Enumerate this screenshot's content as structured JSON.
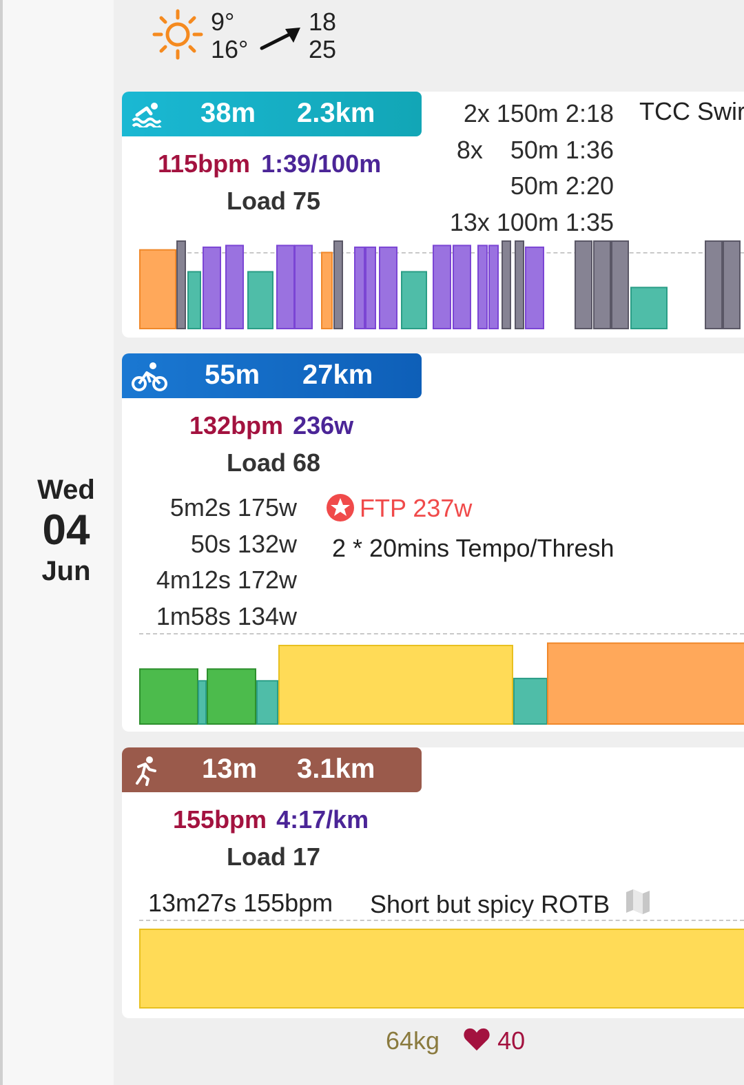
{
  "colors": {
    "swim": "#1eb0c6",
    "ride": "#1565c0",
    "run": "#9a5a4b",
    "hr": "#a3123f",
    "pace": "#4b2597",
    "ftp": "#f04a4a"
  },
  "day": {
    "dow": "Wed",
    "day": "04",
    "month": "Jun"
  },
  "weather": {
    "icon": "sun-icon",
    "temp_low": "9°",
    "temp_high": "16°",
    "wind_icon": "wind-arrow-icon",
    "wind_speed": "18",
    "wind_gust": "25"
  },
  "swim": {
    "icon": "swim-icon",
    "duration": "38m",
    "distance": "2.3km",
    "hr": "115bpm",
    "pace": "1:39/100m",
    "load": "Load 75",
    "intervals": [
      "2x 150m 2:18",
      "8x    50m 1:36",
      "50m 2:20",
      "13x 100m 1:35"
    ],
    "title": "TCC Swir",
    "zone_chart": {
      "type": "bar",
      "bars": [
        {
          "zone": "orange",
          "h": 0.9,
          "w": 1.0
        },
        {
          "zone": "gray",
          "h": 1.0,
          "w": 0.25
        },
        {
          "zone": "teal",
          "h": 0.65,
          "w": 0.45
        },
        {
          "zone": "purple",
          "h": 0.93,
          "w": 0.5
        },
        {
          "zone": "purple",
          "h": 0.95,
          "w": 0.5
        },
        {
          "zone": "teal",
          "h": 0.65,
          "w": 0.7
        },
        {
          "zone": "purple",
          "h": 0.95,
          "w": 0.5
        },
        {
          "zone": "purple",
          "h": 0.95,
          "w": 0.5
        },
        {
          "zone": "orange",
          "h": 0.87,
          "w": 0.3
        },
        {
          "zone": "gray",
          "h": 1.0,
          "w": 0.25
        },
        {
          "zone": "purple",
          "h": 0.93,
          "w": 0.3
        },
        {
          "zone": "purple",
          "h": 0.93,
          "w": 0.3
        },
        {
          "zone": "purple",
          "h": 0.93,
          "w": 0.5
        },
        {
          "zone": "teal",
          "h": 0.65,
          "w": 0.7
        },
        {
          "zone": "purple",
          "h": 0.95,
          "w": 0.5
        },
        {
          "zone": "purple",
          "h": 0.95,
          "w": 0.5
        },
        {
          "zone": "purple",
          "h": 0.95,
          "w": 0.3
        },
        {
          "zone": "purple",
          "h": 0.95,
          "w": 0.3
        },
        {
          "zone": "gray",
          "h": 1.0,
          "w": 0.25
        },
        {
          "zone": "gray",
          "h": 1.0,
          "w": 0.25
        },
        {
          "zone": "purple",
          "h": 0.93,
          "w": 0.5
        },
        {
          "zone": "gray",
          "h": 1.0,
          "w": 0.5
        },
        {
          "zone": "gray",
          "h": 1.0,
          "w": 0.5
        },
        {
          "zone": "gray",
          "h": 1.0,
          "w": 0.5
        },
        {
          "zone": "teal",
          "h": 0.47,
          "w": 1.0
        },
        {
          "zone": "gray",
          "h": 1.0,
          "w": 0.5
        },
        {
          "zone": "gray",
          "h": 1.0,
          "w": 0.5
        }
      ]
    }
  },
  "ride": {
    "icon": "bike-icon",
    "duration": "55m",
    "distance": "27km",
    "hr": "132bpm",
    "power": "236w",
    "load": "Load 68",
    "intervals": [
      "5m2s 175w",
      "50s 132w",
      "4m12s 172w",
      "1m58s 134w"
    ],
    "ftp_icon": "star-icon",
    "ftp": "FTP 237w",
    "title": "2 * 20mins Tempo/Thresh",
    "zone_chart": {
      "type": "bar",
      "bars": [
        {
          "zone": "green",
          "h": 0.7
        },
        {
          "zone": "teal",
          "h": 0.55
        },
        {
          "zone": "green",
          "h": 0.7
        },
        {
          "zone": "teal",
          "h": 0.55
        },
        {
          "zone": "yellow",
          "h": 1.0
        },
        {
          "zone": "teal",
          "h": 0.58
        },
        {
          "zone": "orange",
          "h": 1.03
        }
      ]
    }
  },
  "run": {
    "icon": "run-icon",
    "duration": "13m",
    "distance": "3.1km",
    "hr": "155bpm",
    "pace": "4:17/km",
    "load": "Load 17",
    "interval": "13m27s 155bpm",
    "title": "Short but spicy ROTB",
    "map_icon": "map-icon",
    "zone_chart": {
      "type": "bar",
      "bars": [
        {
          "zone": "yellow",
          "h": 1.0
        }
      ]
    }
  },
  "footer": {
    "weight": "64kg",
    "hrv_icon": "heart-icon",
    "hrv": "40"
  }
}
